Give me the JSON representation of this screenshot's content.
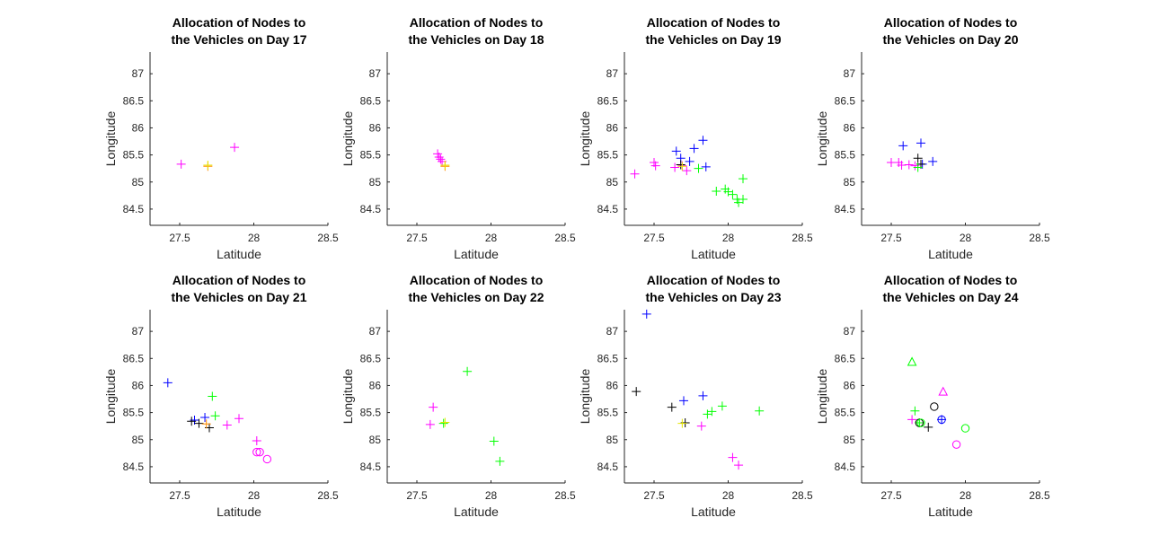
{
  "colors": {
    "vehicle_blue": "#0000ff",
    "vehicle_green": "#00ff00",
    "vehicle_magenta": "#ff00ff",
    "vehicle_black": "#000000",
    "depot_orange": "#ff8c00",
    "depot_yellow": "#e6e600",
    "axis": "#262626"
  },
  "chart_data": [
    {
      "type": "scatter",
      "title": [
        "Allocation of Nodes to",
        "the Vehicles on Day 17"
      ],
      "xlabel": "Latitude",
      "ylabel": "Longitude",
      "xlim": [
        27.3,
        28.5
      ],
      "ylim": [
        84.2,
        87.4
      ],
      "xticks": [
        "27.5",
        "28",
        "28.5"
      ],
      "yticks": [
        "84.5",
        "85",
        "85.5",
        "86",
        "86.5",
        "87"
      ],
      "series": [
        {
          "marker": "plus",
          "color": "#ff00ff",
          "points": [
            [
              27.51,
              85.33
            ],
            [
              27.87,
              85.64
            ]
          ]
        },
        {
          "marker": "plus",
          "color": "#ff8c00",
          "points": [
            [
              27.69,
              85.29
            ]
          ]
        },
        {
          "marker": "plus",
          "color": "#e6e600",
          "points": [
            [
              27.69,
              85.31
            ]
          ]
        }
      ]
    },
    {
      "type": "scatter",
      "title": [
        "Allocation of Nodes to",
        "the Vehicles on Day 18"
      ],
      "xlabel": "Latitude",
      "ylabel": "Longitude",
      "xlim": [
        27.3,
        28.5
      ],
      "ylim": [
        84.2,
        87.4
      ],
      "xticks": [
        "27.5",
        "28",
        "28.5"
      ],
      "yticks": [
        "84.5",
        "85",
        "85.5",
        "86",
        "86.5",
        "87"
      ],
      "series": [
        {
          "marker": "plus",
          "color": "#ff00ff",
          "points": [
            [
              27.64,
              85.52
            ],
            [
              27.65,
              85.46
            ],
            [
              27.66,
              85.42
            ],
            [
              27.67,
              85.38
            ]
          ]
        },
        {
          "marker": "plus",
          "color": "#ff8c00",
          "points": [
            [
              27.69,
              85.29
            ]
          ]
        },
        {
          "marker": "plus",
          "color": "#e6e600",
          "points": [
            [
              27.69,
              85.31
            ]
          ]
        }
      ]
    },
    {
      "type": "scatter",
      "title": [
        "Allocation of Nodes to",
        "the Vehicles on Day 19"
      ],
      "xlabel": "Latitude",
      "ylabel": "Longitude",
      "xlim": [
        27.3,
        28.5
      ],
      "ylim": [
        84.2,
        87.4
      ],
      "xticks": [
        "27.5",
        "28",
        "28.5"
      ],
      "yticks": [
        "84.5",
        "85",
        "85.5",
        "86",
        "86.5",
        "87"
      ],
      "series": [
        {
          "marker": "plus",
          "color": "#0000ff",
          "points": [
            [
              27.65,
              85.57
            ],
            [
              27.68,
              85.44
            ],
            [
              27.74,
              85.38
            ],
            [
              27.77,
              85.62
            ],
            [
              27.83,
              85.77
            ],
            [
              27.85,
              85.28
            ]
          ]
        },
        {
          "marker": "plus",
          "color": "#00ff00",
          "points": [
            [
              27.8,
              85.25
            ],
            [
              27.92,
              84.83
            ],
            [
              27.98,
              84.87
            ],
            [
              28.0,
              84.82
            ],
            [
              28.03,
              84.77
            ],
            [
              28.06,
              84.68
            ],
            [
              28.07,
              84.62
            ],
            [
              28.1,
              84.68
            ],
            [
              28.1,
              85.06
            ]
          ]
        },
        {
          "marker": "plus",
          "color": "#ff00ff",
          "points": [
            [
              27.37,
              85.15
            ],
            [
              27.5,
              85.36
            ],
            [
              27.51,
              85.3
            ],
            [
              27.64,
              85.27
            ],
            [
              27.69,
              85.3
            ],
            [
              27.72,
              85.21
            ]
          ]
        },
        {
          "marker": "plus",
          "color": "#000000",
          "points": [
            [
              27.68,
              85.32
            ]
          ]
        },
        {
          "marker": "plus",
          "color": "#e6e600",
          "points": [
            [
              27.69,
              85.29
            ]
          ]
        }
      ]
    },
    {
      "type": "scatter",
      "title": [
        "Allocation of Nodes to",
        "the Vehicles on Day 20"
      ],
      "xlabel": "Latitude",
      "ylabel": "Longitude",
      "xlim": [
        27.3,
        28.5
      ],
      "ylim": [
        84.2,
        87.4
      ],
      "xticks": [
        "27.5",
        "28",
        "28.5"
      ],
      "yticks": [
        "84.5",
        "85",
        "85.5",
        "86",
        "86.5",
        "87"
      ],
      "series": [
        {
          "marker": "plus",
          "color": "#0000ff",
          "points": [
            [
              27.58,
              85.67
            ],
            [
              27.7,
              85.72
            ],
            [
              27.71,
              85.33
            ],
            [
              27.78,
              85.38
            ]
          ]
        },
        {
          "marker": "plus",
          "color": "#ff00ff",
          "points": [
            [
              27.5,
              85.36
            ],
            [
              27.55,
              85.36
            ],
            [
              27.57,
              85.31
            ],
            [
              27.62,
              85.32
            ],
            [
              27.66,
              85.3
            ]
          ]
        },
        {
          "marker": "plus",
          "color": "#000000",
          "points": [
            [
              27.68,
              85.44
            ],
            [
              27.7,
              85.33
            ]
          ]
        },
        {
          "marker": "plus",
          "color": "#00ff00",
          "points": [
            [
              27.68,
              85.27
            ]
          ]
        }
      ]
    },
    {
      "type": "scatter",
      "title": [
        "Allocation of Nodes to",
        "the Vehicles on Day 21"
      ],
      "xlabel": "Latitude",
      "ylabel": "Longitude",
      "xlim": [
        27.3,
        28.5
      ],
      "ylim": [
        84.2,
        87.4
      ],
      "xticks": [
        "27.5",
        "28",
        "28.5"
      ],
      "yticks": [
        "84.5",
        "85",
        "85.5",
        "86",
        "86.5",
        "87"
      ],
      "series": [
        {
          "marker": "plus",
          "color": "#0000ff",
          "points": [
            [
              27.42,
              86.05
            ],
            [
              27.6,
              85.36
            ],
            [
              27.67,
              85.41
            ]
          ]
        },
        {
          "marker": "plus",
          "color": "#000000",
          "points": [
            [
              27.58,
              85.34
            ],
            [
              27.63,
              85.3
            ],
            [
              27.7,
              85.22
            ]
          ]
        },
        {
          "marker": "plus",
          "color": "#00ff00",
          "points": [
            [
              27.72,
              85.8
            ],
            [
              27.74,
              85.44
            ]
          ]
        },
        {
          "marker": "plus",
          "color": "#ff00ff",
          "points": [
            [
              27.82,
              85.27
            ],
            [
              27.9,
              85.39
            ],
            [
              28.02,
              84.98
            ]
          ]
        },
        {
          "marker": "plus",
          "color": "#ff8c00",
          "points": [
            [
              27.68,
              85.29
            ]
          ]
        },
        {
          "marker": "circle",
          "color": "#ff00ff",
          "points": [
            [
              28.02,
              84.77
            ],
            [
              28.04,
              84.77
            ],
            [
              28.09,
              84.64
            ]
          ]
        }
      ]
    },
    {
      "type": "scatter",
      "title": [
        "Allocation of Nodes to",
        "the Vehicles on Day 22"
      ],
      "xlabel": "Latitude",
      "ylabel": "Longitude",
      "xlim": [
        27.3,
        28.5
      ],
      "ylim": [
        84.2,
        87.4
      ],
      "xticks": [
        "27.5",
        "28",
        "28.5"
      ],
      "yticks": [
        "84.5",
        "85",
        "85.5",
        "86",
        "86.5",
        "87"
      ],
      "series": [
        {
          "marker": "plus",
          "color": "#ff00ff",
          "points": [
            [
              27.59,
              85.28
            ],
            [
              27.61,
              85.6
            ]
          ]
        },
        {
          "marker": "plus",
          "color": "#00ff00",
          "points": [
            [
              27.68,
              85.3
            ],
            [
              27.84,
              86.26
            ],
            [
              28.02,
              84.97
            ],
            [
              28.06,
              84.6
            ]
          ]
        },
        {
          "marker": "plus",
          "color": "#e6e600",
          "points": [
            [
              27.69,
              85.32
            ]
          ]
        }
      ]
    },
    {
      "type": "scatter",
      "title": [
        "Allocation of Nodes to",
        "the Vehicles on Day 23"
      ],
      "xlabel": "Latitude",
      "ylabel": "Longitude",
      "xlim": [
        27.3,
        28.5
      ],
      "ylim": [
        84.2,
        87.4
      ],
      "xticks": [
        "27.5",
        "28",
        "28.5"
      ],
      "yticks": [
        "84.5",
        "85",
        "85.5",
        "86",
        "86.5",
        "87"
      ],
      "series": [
        {
          "marker": "plus",
          "color": "#0000ff",
          "points": [
            [
              27.45,
              87.32
            ],
            [
              27.7,
              85.72
            ],
            [
              27.83,
              85.81
            ]
          ]
        },
        {
          "marker": "plus",
          "color": "#000000",
          "points": [
            [
              27.38,
              85.89
            ],
            [
              27.62,
              85.6
            ],
            [
              27.71,
              85.31
            ]
          ]
        },
        {
          "marker": "plus",
          "color": "#00ff00",
          "points": [
            [
              27.86,
              85.47
            ],
            [
              27.89,
              85.52
            ],
            [
              27.96,
              85.62
            ],
            [
              28.21,
              85.53
            ]
          ]
        },
        {
          "marker": "plus",
          "color": "#ff00ff",
          "points": [
            [
              27.82,
              85.25
            ],
            [
              28.03,
              84.67
            ],
            [
              28.07,
              84.53
            ]
          ]
        },
        {
          "marker": "plus",
          "color": "#e6e600",
          "points": [
            [
              27.69,
              85.3
            ]
          ]
        }
      ]
    },
    {
      "type": "scatter",
      "title": [
        "Allocation of Nodes to",
        "the Vehicles on Day 24"
      ],
      "xlabel": "Latitude",
      "ylabel": "Longitude",
      "xlim": [
        27.3,
        28.5
      ],
      "ylim": [
        84.2,
        87.4
      ],
      "xticks": [
        "27.5",
        "28",
        "28.5"
      ],
      "yticks": [
        "84.5",
        "85",
        "85.5",
        "86",
        "86.5",
        "87"
      ],
      "series": [
        {
          "marker": "plus",
          "color": "#ff00ff",
          "points": [
            [
              27.64,
              85.37
            ]
          ]
        },
        {
          "marker": "plus",
          "color": "#00ff00",
          "points": [
            [
              27.66,
              85.53
            ],
            [
              27.69,
              85.31
            ]
          ]
        },
        {
          "marker": "plus",
          "color": "#000000",
          "points": [
            [
              27.75,
              85.23
            ]
          ]
        },
        {
          "marker": "plus",
          "color": "#0000ff",
          "points": [
            [
              27.84,
              85.37
            ]
          ]
        },
        {
          "marker": "triangle",
          "color": "#00ff00",
          "points": [
            [
              27.64,
              86.43
            ]
          ]
        },
        {
          "marker": "triangle",
          "color": "#ff00ff",
          "points": [
            [
              27.85,
              85.88
            ]
          ]
        },
        {
          "marker": "circle",
          "color": "#000000",
          "points": [
            [
              27.69,
              85.31
            ],
            [
              27.79,
              85.61
            ]
          ]
        },
        {
          "marker": "circle",
          "color": "#0000ff",
          "points": [
            [
              27.84,
              85.37
            ]
          ]
        },
        {
          "marker": "circle",
          "color": "#00ff00",
          "points": [
            [
              27.7,
              85.31
            ],
            [
              28.0,
              85.21
            ]
          ]
        },
        {
          "marker": "circle",
          "color": "#ff00ff",
          "points": [
            [
              27.94,
              84.91
            ]
          ]
        }
      ]
    }
  ]
}
